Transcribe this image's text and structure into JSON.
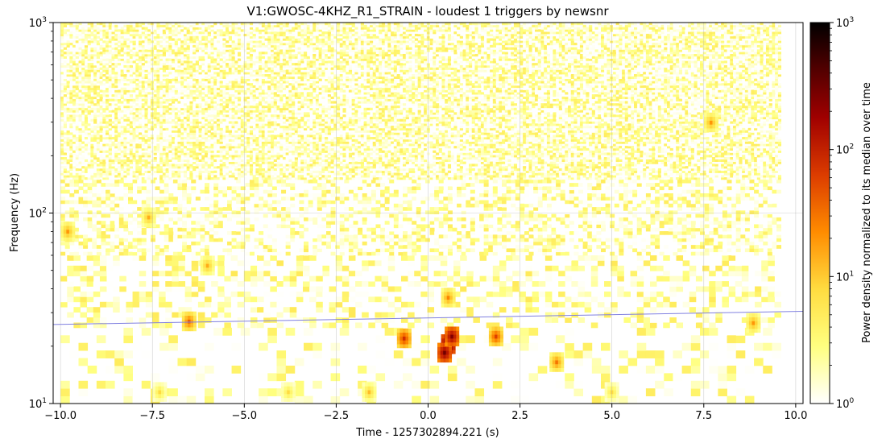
{
  "chart_data": {
    "type": "heatmap",
    "title": "V1:GWOSC-4KHZ_R1_STRAIN - loudest 1 triggers by newsnr",
    "xlabel": "Time - 1257302894.221 (s)",
    "ylabel": "Frequency (Hz)",
    "colorbar_label": "Power density normalized to its median over time",
    "x_scale": "linear",
    "y_scale": "log",
    "color_scale": "log",
    "colormap": "afmhot_r",
    "xlim": [
      -10.2,
      10.2
    ],
    "ylim": [
      10,
      1000
    ],
    "clim": [
      1,
      1000
    ],
    "grid": true,
    "x_ticks": [
      {
        "value": -10.0,
        "label": "−10.0"
      },
      {
        "value": -7.5,
        "label": "−7.5"
      },
      {
        "value": -5.0,
        "label": "−5.0"
      },
      {
        "value": -2.5,
        "label": "−2.5"
      },
      {
        "value": 0.0,
        "label": "0.0"
      },
      {
        "value": 2.5,
        "label": "2.5"
      },
      {
        "value": 5.0,
        "label": "5.0"
      },
      {
        "value": 7.5,
        "label": "7.5"
      },
      {
        "value": 10.0,
        "label": "10.0"
      }
    ],
    "y_ticks": [
      {
        "value": 10,
        "base": "10",
        "exp": "1"
      },
      {
        "value": 100,
        "base": "10",
        "exp": "2"
      },
      {
        "value": 1000,
        "base": "10",
        "exp": "3"
      }
    ],
    "colorbar_ticks": [
      {
        "value": 1,
        "base": "10",
        "exp": "0"
      },
      {
        "value": 10,
        "base": "10",
        "exp": "1"
      },
      {
        "value": 100,
        "base": "10",
        "exp": "2"
      },
      {
        "value": 1000,
        "base": "10",
        "exp": "3"
      }
    ],
    "spectrogram_time_range": [
      -10,
      9.6
    ],
    "trigger_track": {
      "color": "#8080e0",
      "points": [
        {
          "x": -10.2,
          "y": 26
        },
        {
          "x": 10.2,
          "y": 30.5
        }
      ]
    },
    "hotspots": [
      {
        "t": 0.55,
        "f": 20.5,
        "value": 600
      },
      {
        "t": 0.45,
        "f": 18.5,
        "value": 300
      },
      {
        "t": 0.65,
        "f": 22.5,
        "value": 250
      },
      {
        "t": -0.65,
        "f": 22.0,
        "value": 80
      },
      {
        "t": 1.85,
        "f": 22.5,
        "value": 60
      },
      {
        "t": -6.5,
        "f": 27.0,
        "value": 40
      },
      {
        "t": 3.5,
        "f": 16.5,
        "value": 30
      },
      {
        "t": 0.55,
        "f": 36.0,
        "value": 25
      },
      {
        "t": 8.85,
        "f": 26.5,
        "value": 20
      },
      {
        "t": -1.6,
        "f": 11.5,
        "value": 12
      },
      {
        "t": -3.8,
        "f": 11.5,
        "value": 8
      },
      {
        "t": -7.3,
        "f": 11.5,
        "value": 8
      },
      {
        "t": 5.0,
        "f": 11.5,
        "value": 8
      },
      {
        "t": 7.7,
        "f": 299.0,
        "value": 20
      },
      {
        "t": -9.8,
        "f": 80.0,
        "value": 20
      },
      {
        "t": -7.6,
        "f": 95.0,
        "value": 15
      },
      {
        "t": -6.0,
        "f": 53.0,
        "value": 15
      }
    ]
  }
}
